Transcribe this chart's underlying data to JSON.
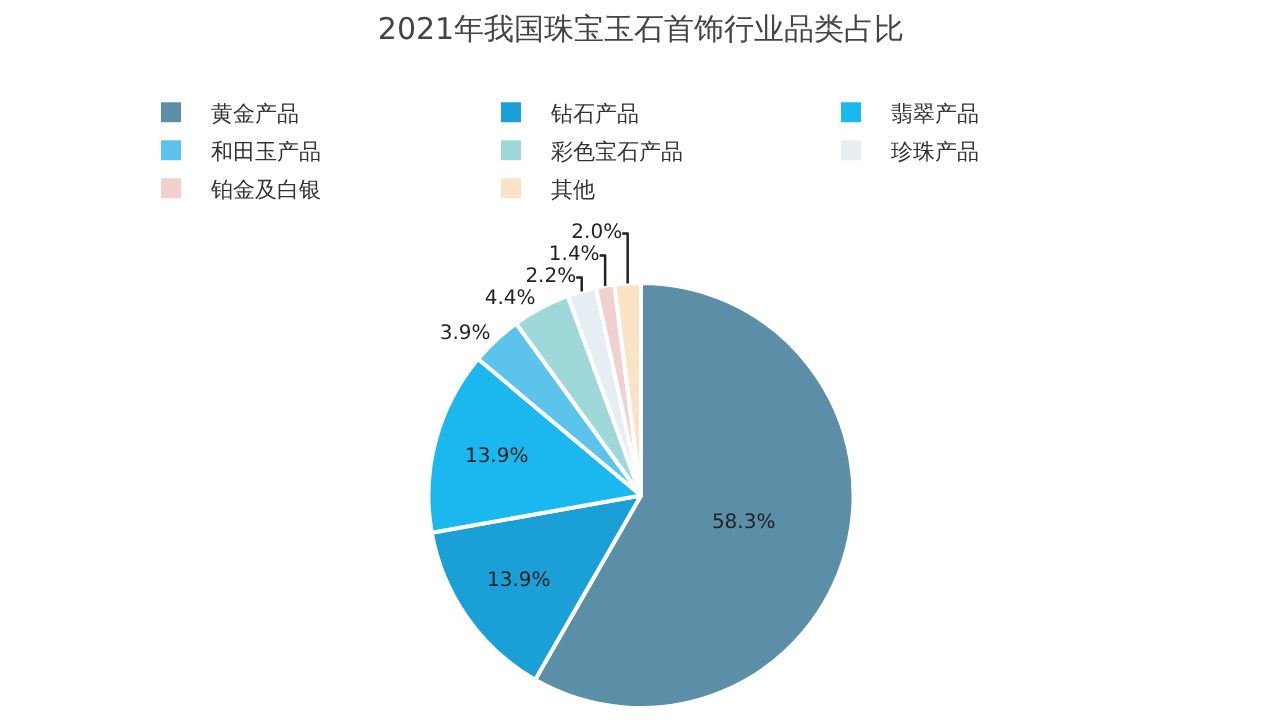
{
  "chart_data": {
    "type": "pie",
    "title": "2021年我国珠宝玉石首饰行业品类占比",
    "categories": [
      "黄金产品",
      "钻石产品",
      "翡翠产品",
      "和田玉产品",
      "彩色宝石产品",
      "珍珠产品",
      "铂金及白银",
      "其他"
    ],
    "values": [
      58.3,
      13.9,
      13.9,
      3.9,
      4.4,
      2.2,
      1.4,
      2.0
    ],
    "value_labels": [
      "58.3%",
      "13.9%",
      "13.9%",
      "3.9%",
      "4.4%",
      "2.2%",
      "1.4%",
      "2.0%"
    ],
    "colors": [
      "#5b8fa8",
      "#1a9fd6",
      "#1ab8ef",
      "#5cc4ec",
      "#9fd8d8",
      "#e6eef4",
      "#f2d0d0",
      "#fbe3c6"
    ],
    "legend": "top"
  }
}
